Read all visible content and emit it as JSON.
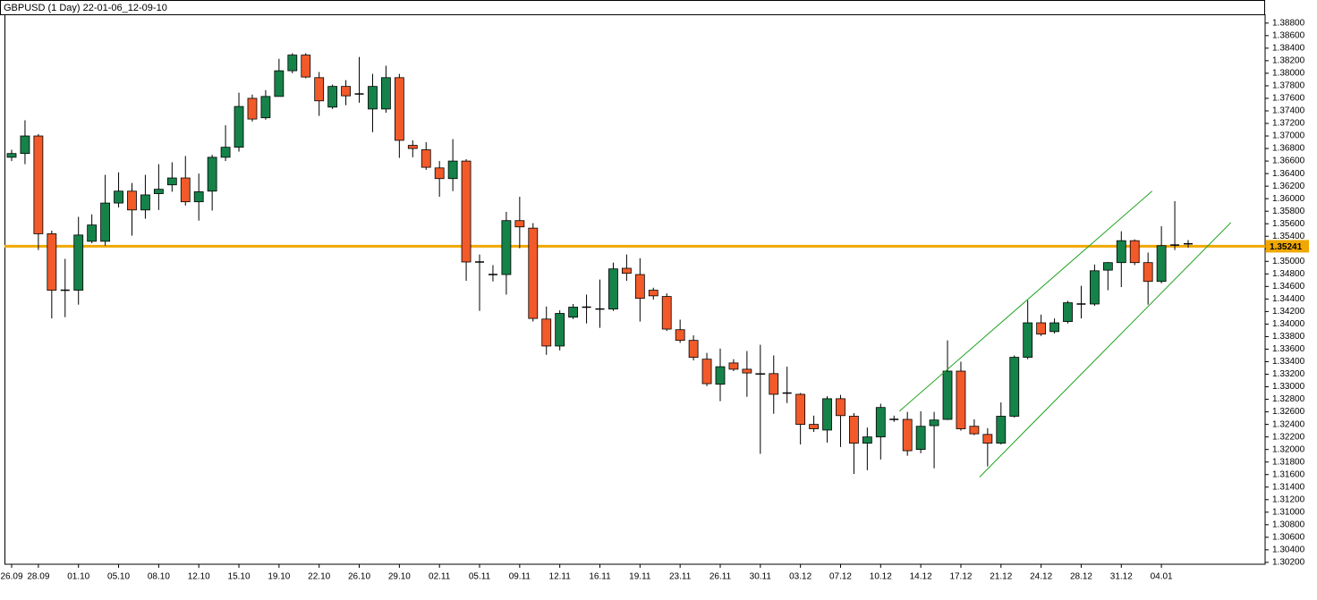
{
  "chart_data": {
    "type": "candlestick",
    "title": "GBPUSD (1 Day) 22-01-06_12-09-10",
    "categories": [
      "26.09",
      null,
      "28.09",
      null,
      null,
      "01.10",
      null,
      null,
      "05.10",
      null,
      null,
      "08.10",
      null,
      null,
      "12.10",
      null,
      null,
      "15.10",
      null,
      null,
      "19.10",
      null,
      null,
      "22.10",
      null,
      null,
      "26.10",
      null,
      null,
      "29.10",
      null,
      null,
      "02.11",
      null,
      null,
      "05.11",
      null,
      null,
      "09.11",
      null,
      null,
      "12.11",
      null,
      null,
      "16.11",
      null,
      null,
      "19.11",
      null,
      null,
      "23.11",
      null,
      null,
      "26.11",
      null,
      null,
      "30.11",
      null,
      null,
      "03.12",
      null,
      null,
      "07.12",
      null,
      null,
      "10.12",
      null,
      null,
      "14.12",
      null,
      null,
      "17.12",
      null,
      null,
      "21.12",
      null,
      null,
      "24.12",
      null,
      null,
      "28.12",
      null,
      null,
      "31.12",
      null,
      null,
      "04.01",
      null,
      null
    ],
    "open": [
      1.3666,
      1.3672,
      1.37,
      1.3544,
      1.3454,
      1.3454,
      1.3532,
      1.3532,
      1.3593,
      1.3612,
      1.3582,
      1.3608,
      1.3622,
      1.3633,
      1.3595,
      1.3612,
      1.3666,
      1.3682,
      1.376,
      1.3729,
      1.3763,
      1.3804,
      1.3829,
      1.3793,
      1.3746,
      1.3779,
      1.3767,
      1.3743,
      1.3743,
      1.3793,
      1.3685,
      1.3678,
      1.3649,
      1.3632,
      1.366,
      1.3499,
      1.3479,
      1.3479,
      1.3565,
      1.3553,
      1.3408,
      1.3365,
      1.3411,
      1.3427,
      1.3424,
      1.3424,
      1.3489,
      1.3479,
      1.3454,
      1.3444,
      1.3391,
      1.3374,
      1.3344,
      1.3304,
      1.3338,
      1.3328,
      1.3321,
      1.3321,
      1.329,
      1.3288,
      1.324,
      1.3231,
      1.3281,
      1.3253,
      1.321,
      1.322,
      1.3248,
      1.3248,
      1.32,
      1.3238,
      1.3248,
      1.3325,
      1.3237,
      1.3224,
      1.321,
      1.3253,
      1.3347,
      1.3402,
      1.3388,
      1.3404,
      1.3432,
      1.3432,
      1.3486,
      1.3498,
      1.3533,
      1.3498,
      1.3468,
      1.3526,
      1.3528
    ],
    "high": [
      1.3678,
      1.3725,
      1.3703,
      1.3549,
      1.3504,
      1.3571,
      1.3575,
      1.3638,
      1.3642,
      1.3625,
      1.3638,
      1.3655,
      1.3658,
      1.3668,
      1.364,
      1.367,
      1.3717,
      1.3769,
      1.3766,
      1.3773,
      1.3823,
      1.3832,
      1.3832,
      1.3802,
      1.3782,
      1.3789,
      1.3826,
      1.3799,
      1.3812,
      1.3799,
      1.3693,
      1.369,
      1.366,
      1.3695,
      1.3663,
      1.3511,
      1.3494,
      1.3579,
      1.3603,
      1.3561,
      1.3428,
      1.3422,
      1.3432,
      1.3447,
      1.3471,
      1.3498,
      1.3511,
      1.3505,
      1.3458,
      1.3449,
      1.3407,
      1.3382,
      1.3354,
      1.3361,
      1.3344,
      1.3357,
      1.3367,
      1.335,
      1.3332,
      1.329,
      1.3254,
      1.3285,
      1.3287,
      1.3258,
      1.3235,
      1.3273,
      1.3254,
      1.326,
      1.3261,
      1.326,
      1.3374,
      1.334,
      1.3248,
      1.3234,
      1.3275,
      1.335,
      1.3438,
      1.3415,
      1.3409,
      1.3437,
      1.3461,
      1.3495,
      1.3499,
      1.3548,
      1.3535,
      1.3514,
      1.3556,
      1.3596,
      1.3534
    ],
    "low": [
      1.366,
      1.3655,
      1.3518,
      1.3409,
      1.3411,
      1.3431,
      1.3529,
      1.3525,
      1.3586,
      1.3541,
      1.3568,
      1.3582,
      1.3611,
      1.3589,
      1.3565,
      1.3581,
      1.366,
      1.3675,
      1.3723,
      1.3726,
      1.3763,
      1.38,
      1.3792,
      1.3732,
      1.3743,
      1.3749,
      1.3753,
      1.3706,
      1.3737,
      1.3665,
      1.3666,
      1.3646,
      1.3603,
      1.3612,
      1.3469,
      1.3421,
      1.3468,
      1.3447,
      1.3521,
      1.3404,
      1.3351,
      1.3358,
      1.3408,
      1.3401,
      1.3394,
      1.3421,
      1.3469,
      1.3404,
      1.3439,
      1.3389,
      1.337,
      1.3342,
      1.3301,
      1.3277,
      1.3325,
      1.3284,
      1.3193,
      1.3257,
      1.3274,
      1.3208,
      1.3228,
      1.3211,
      1.3204,
      1.3161,
      1.3167,
      1.3184,
      1.3244,
      1.319,
      1.3194,
      1.317,
      1.3247,
      1.323,
      1.3223,
      1.3173,
      1.3208,
      1.3251,
      1.3344,
      1.3381,
      1.3385,
      1.3401,
      1.3409,
      1.3429,
      1.3454,
      1.3459,
      1.3494,
      1.3431,
      1.3465,
      1.3518,
      1.3522
    ],
    "close": [
      1.3672,
      1.37,
      1.3544,
      1.3454,
      1.3454,
      1.3542,
      1.3558,
      1.3593,
      1.3612,
      1.3582,
      1.3606,
      1.3615,
      1.3633,
      1.3595,
      1.3611,
      1.3666,
      1.3682,
      1.3747,
      1.3727,
      1.3763,
      1.3804,
      1.3829,
      1.3794,
      1.3756,
      1.3779,
      1.3764,
      1.3767,
      1.3779,
      1.3793,
      1.3693,
      1.368,
      1.365,
      1.3632,
      1.366,
      1.3499,
      1.3499,
      1.3479,
      1.3565,
      1.3555,
      1.3409,
      1.3365,
      1.3417,
      1.3427,
      1.3427,
      1.3424,
      1.3488,
      1.3481,
      1.3441,
      1.3445,
      1.3392,
      1.3374,
      1.3347,
      1.3305,
      1.3332,
      1.3328,
      1.3322,
      1.332,
      1.3288,
      1.329,
      1.324,
      1.3233,
      1.3281,
      1.3254,
      1.321,
      1.322,
      1.3267,
      1.3248,
      1.3198,
      1.3237,
      1.3247,
      1.3325,
      1.3233,
      1.3225,
      1.321,
      1.3253,
      1.3347,
      1.3402,
      1.3384,
      1.3402,
      1.3434,
      1.3432,
      1.3485,
      1.3498,
      1.3533,
      1.3498,
      1.3468,
      1.3525,
      1.3526,
      1.3528
    ],
    "up_color": "#15824a",
    "down_color": "#f25a2a",
    "ylim": [
      1.3017,
      1.3894
    ],
    "yticks": [
      {
        "value": 1.388,
        "label": "1.38800"
      },
      {
        "value": 1.386,
        "label": "1.38600"
      },
      {
        "value": 1.384,
        "label": "1.38400"
      },
      {
        "value": 1.382,
        "label": "1.38200"
      },
      {
        "value": 1.38,
        "label": "1.38000"
      },
      {
        "value": 1.378,
        "label": "1.37800"
      },
      {
        "value": 1.376,
        "label": "1.37600"
      },
      {
        "value": 1.374,
        "label": "1.37400"
      },
      {
        "value": 1.372,
        "label": "1.37200"
      },
      {
        "value": 1.37,
        "label": "1.37000"
      },
      {
        "value": 1.368,
        "label": "1.36800"
      },
      {
        "value": 1.366,
        "label": "1.36600"
      },
      {
        "value": 1.364,
        "label": "1.36400"
      },
      {
        "value": 1.362,
        "label": "1.36200"
      },
      {
        "value": 1.36,
        "label": "1.36000"
      },
      {
        "value": 1.358,
        "label": "1.35800"
      },
      {
        "value": 1.356,
        "label": "1.35600"
      },
      {
        "value": 1.354,
        "label": "1.35400"
      },
      {
        "value": 1.352,
        "label": "1.35200"
      },
      {
        "value": 1.35,
        "label": "1.35000"
      },
      {
        "value": 1.348,
        "label": "1.34800"
      },
      {
        "value": 1.346,
        "label": "1.34600"
      },
      {
        "value": 1.344,
        "label": "1.34400"
      },
      {
        "value": 1.342,
        "label": "1.34200"
      },
      {
        "value": 1.34,
        "label": "1.34000"
      },
      {
        "value": 1.338,
        "label": "1.33800"
      },
      {
        "value": 1.336,
        "label": "1.33600"
      },
      {
        "value": 1.334,
        "label": "1.33400"
      },
      {
        "value": 1.332,
        "label": "1.33200"
      },
      {
        "value": 1.33,
        "label": "1.33000"
      },
      {
        "value": 1.328,
        "label": "1.32800"
      },
      {
        "value": 1.326,
        "label": "1.32600"
      },
      {
        "value": 1.324,
        "label": "1.32400"
      },
      {
        "value": 1.322,
        "label": "1.32200"
      },
      {
        "value": 1.32,
        "label": "1.32000"
      },
      {
        "value": 1.318,
        "label": "1.31800"
      },
      {
        "value": 1.316,
        "label": "1.31600"
      },
      {
        "value": 1.314,
        "label": "1.31400"
      },
      {
        "value": 1.312,
        "label": "1.31200"
      },
      {
        "value": 1.31,
        "label": "1.31000"
      },
      {
        "value": 1.308,
        "label": "1.30800"
      },
      {
        "value": 1.306,
        "label": "1.30600"
      },
      {
        "value": 1.304,
        "label": "1.30400"
      },
      {
        "value": 1.302,
        "label": "1.30200"
      }
    ],
    "hline": {
      "value": 1.35241,
      "color": "#f0a800"
    },
    "trendlines": [
      {
        "color": "#1fa31f",
        "points": [
          [
            66.4,
            1.3261
          ],
          [
            85.3,
            1.3612
          ]
        ]
      },
      {
        "color": "#1fa31f",
        "points": [
          [
            72.4,
            1.3156
          ],
          [
            91.2,
            1.3562
          ]
        ]
      }
    ]
  }
}
